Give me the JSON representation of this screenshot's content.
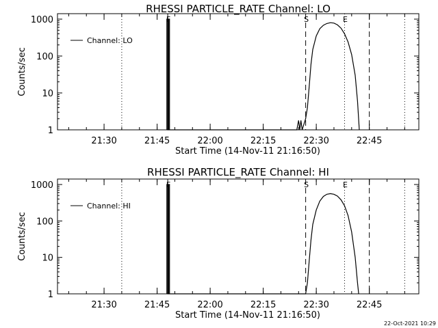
{
  "footer": {
    "timestamp": "22-Oct-2021 10:29"
  },
  "chart_data": [
    {
      "type": "line",
      "title": "RHESSI PARTICLE_RATE Channel: LO",
      "xlabel": "Start Time (14-Nov-11 21:16:50)",
      "ylabel": "Counts/sec",
      "yscale": "log",
      "ylim": [
        1,
        1000
      ],
      "xlim_minutes": [
        21.283,
        22.983
      ],
      "x_ticks": [
        "21:30",
        "21:45",
        "22:00",
        "22:15",
        "22:30",
        "22:45"
      ],
      "y_ticks": [
        "1",
        "10",
        "100",
        "1000"
      ],
      "legend": {
        "position": "top-left",
        "entries": [
          "Channel: LO"
        ]
      },
      "markers": [
        {
          "label": "",
          "time": "21:35",
          "style": "dotted"
        },
        {
          "label": "F",
          "time": "21:48",
          "style": "solid"
        },
        {
          "label": "S",
          "time": "22:27",
          "style": "dashed"
        },
        {
          "label": "E",
          "time": "22:38",
          "style": "dotted"
        },
        {
          "label": "",
          "time": "22:45",
          "style": "dashed"
        },
        {
          "label": "",
          "time": "22:55",
          "style": "dotted"
        }
      ],
      "series": [
        {
          "name": "Channel: LO",
          "points": [
            [
              "21:47:45",
              1
            ],
            [
              "21:47:45",
              1000
            ],
            [
              "21:48:00",
              1000
            ],
            [
              "21:48:00",
              1
            ],
            [
              "21:48:15",
              1
            ],
            [
              "21:48:15",
              1000
            ],
            [
              "21:48:30",
              1000
            ],
            [
              "21:48:30",
              1
            ],
            [
              "22:24:30",
              1
            ],
            [
              "22:25:00",
              1.8
            ],
            [
              "22:25:20",
              1
            ],
            [
              "22:25:40",
              1.8
            ],
            [
              "22:26:00",
              1
            ],
            [
              "22:27:00",
              2
            ],
            [
              "22:27:30",
              4
            ],
            [
              "22:28:00",
              15
            ],
            [
              "22:28:30",
              60
            ],
            [
              "22:29:00",
              150
            ],
            [
              "22:30:00",
              350
            ],
            [
              "22:31:00",
              550
            ],
            [
              "22:32:00",
              680
            ],
            [
              "22:33:00",
              760
            ],
            [
              "22:34:00",
              800
            ],
            [
              "22:35:00",
              780
            ],
            [
              "22:36:00",
              700
            ],
            [
              "22:37:00",
              570
            ],
            [
              "22:38:00",
              400
            ],
            [
              "22:39:00",
              240
            ],
            [
              "22:40:00",
              110
            ],
            [
              "22:41:00",
              30
            ],
            [
              "22:41:40",
              6
            ],
            [
              "22:42:10",
              1
            ]
          ]
        }
      ]
    },
    {
      "type": "line",
      "title": "RHESSI PARTICLE_RATE Channel: HI",
      "xlabel": "Start Time (14-Nov-11 21:16:50)",
      "ylabel": "Counts/sec",
      "yscale": "log",
      "ylim": [
        1,
        1000
      ],
      "x_ticks": [
        "21:30",
        "21:45",
        "22:00",
        "22:15",
        "22:30",
        "22:45"
      ],
      "y_ticks": [
        "1",
        "10",
        "100",
        "1000"
      ],
      "legend": {
        "position": "top-left",
        "entries": [
          "Channel: HI"
        ]
      },
      "markers": [
        {
          "label": "",
          "time": "21:35",
          "style": "dotted"
        },
        {
          "label": "F",
          "time": "21:48",
          "style": "solid"
        },
        {
          "label": "S",
          "time": "22:27",
          "style": "dashed"
        },
        {
          "label": "E",
          "time": "22:38",
          "style": "dotted"
        },
        {
          "label": "",
          "time": "22:45",
          "style": "dashed"
        },
        {
          "label": "",
          "time": "22:55",
          "style": "dotted"
        }
      ],
      "series": [
        {
          "name": "Channel: HI",
          "points": [
            [
              "21:47:45",
              1
            ],
            [
              "21:47:45",
              1000
            ],
            [
              "21:48:00",
              1000
            ],
            [
              "21:48:00",
              1
            ],
            [
              "21:48:15",
              1
            ],
            [
              "21:48:15",
              1000
            ],
            [
              "21:48:30",
              1000
            ],
            [
              "21:48:30",
              1
            ],
            [
              "22:27:00",
              1
            ],
            [
              "22:27:30",
              2
            ],
            [
              "22:28:00",
              8
            ],
            [
              "22:28:30",
              30
            ],
            [
              "22:29:00",
              80
            ],
            [
              "22:30:00",
              200
            ],
            [
              "22:31:00",
              350
            ],
            [
              "22:32:00",
              470
            ],
            [
              "22:33:00",
              540
            ],
            [
              "22:34:00",
              560
            ],
            [
              "22:35:00",
              540
            ],
            [
              "22:36:00",
              480
            ],
            [
              "22:37:00",
              380
            ],
            [
              "22:38:00",
              260
            ],
            [
              "22:39:00",
              140
            ],
            [
              "22:40:00",
              50
            ],
            [
              "22:41:00",
              10
            ],
            [
              "22:41:40",
              2
            ],
            [
              "22:42:00",
              1
            ]
          ]
        }
      ]
    }
  ]
}
